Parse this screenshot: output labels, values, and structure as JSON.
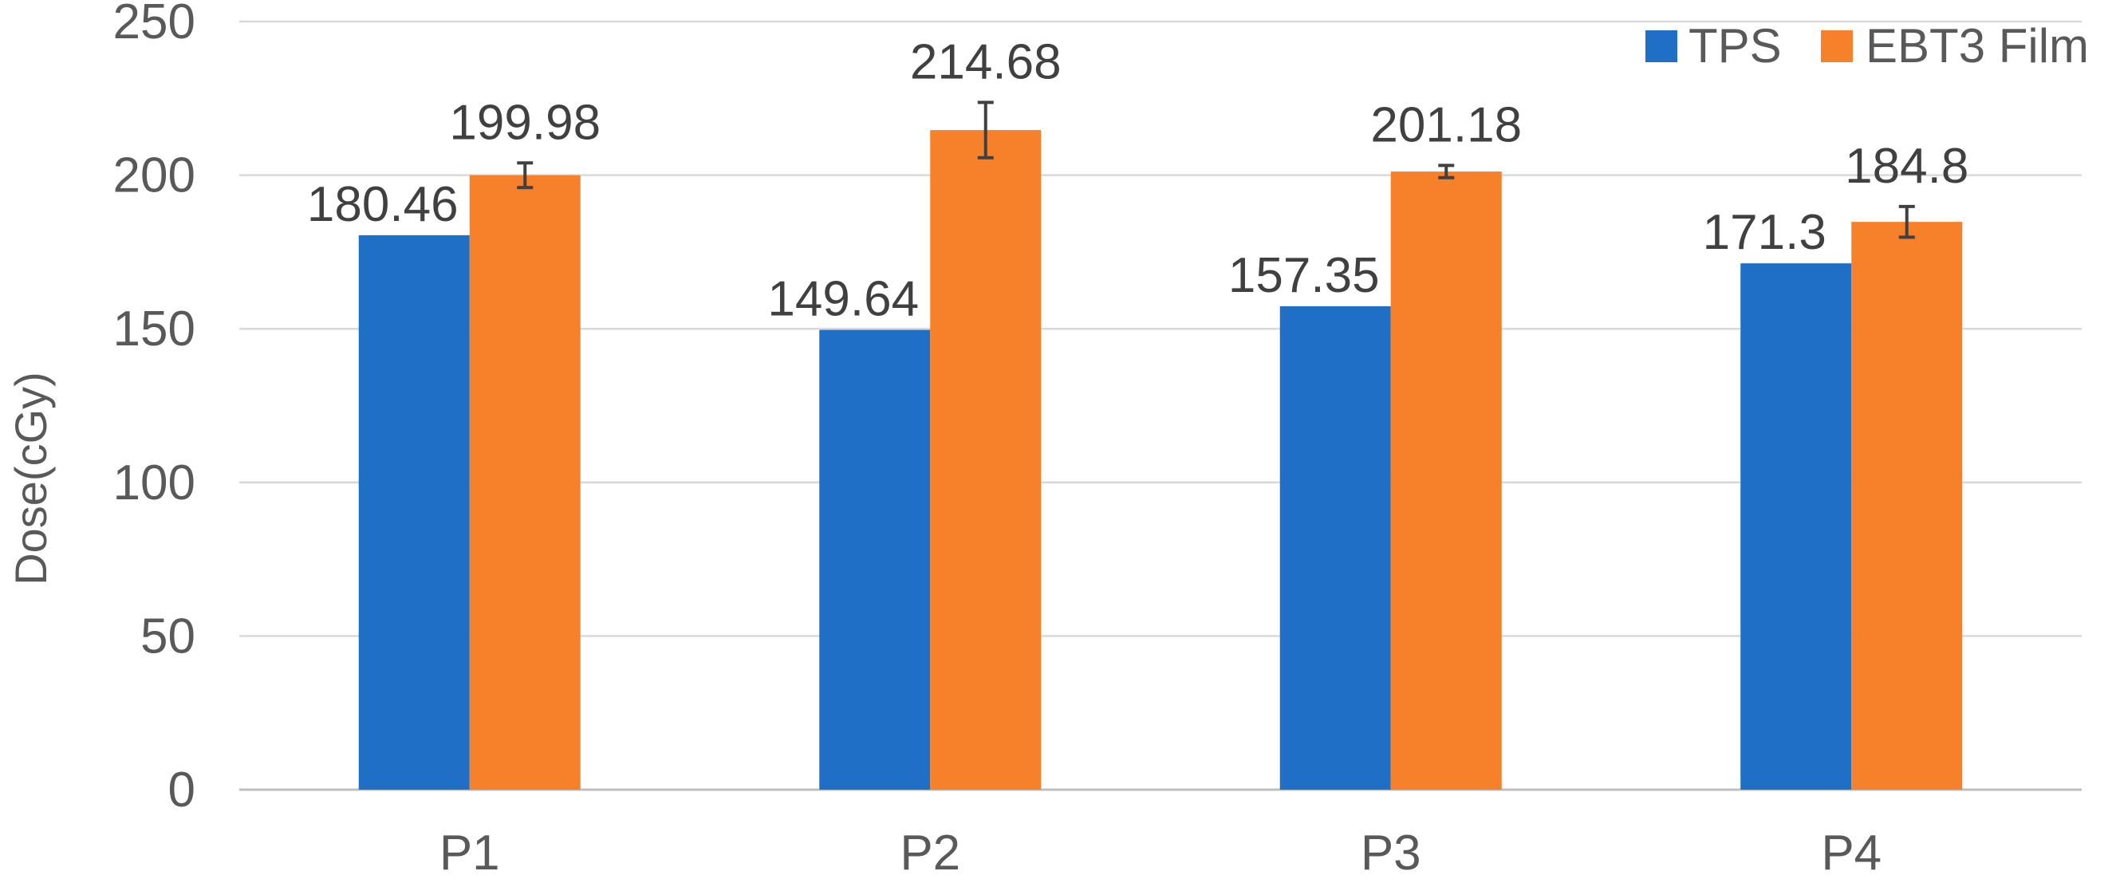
{
  "chart_data": {
    "type": "bar",
    "title": "",
    "xlabel": "",
    "ylabel": "Dose(cGy)",
    "categories": [
      "P1",
      "P2",
      "P3",
      "P4"
    ],
    "ylim": [
      0,
      250
    ],
    "yticks": [
      0,
      50,
      100,
      150,
      200,
      250
    ],
    "grid": true,
    "legend_position": "top-right",
    "series": [
      {
        "name": "TPS",
        "color": "#1f6fc6",
        "values": [
          180.46,
          149.64,
          157.35,
          171.3
        ],
        "labels": [
          "180.46",
          "149.64",
          "157.35",
          "171.3"
        ]
      },
      {
        "name": "EBT3 Film",
        "color": "#f7812b",
        "values": [
          199.98,
          214.68,
          201.18,
          184.8
        ],
        "labels": [
          "199.98",
          "214.68",
          "201.18",
          "184.8"
        ],
        "error": [
          4,
          9,
          2,
          5
        ]
      }
    ]
  }
}
